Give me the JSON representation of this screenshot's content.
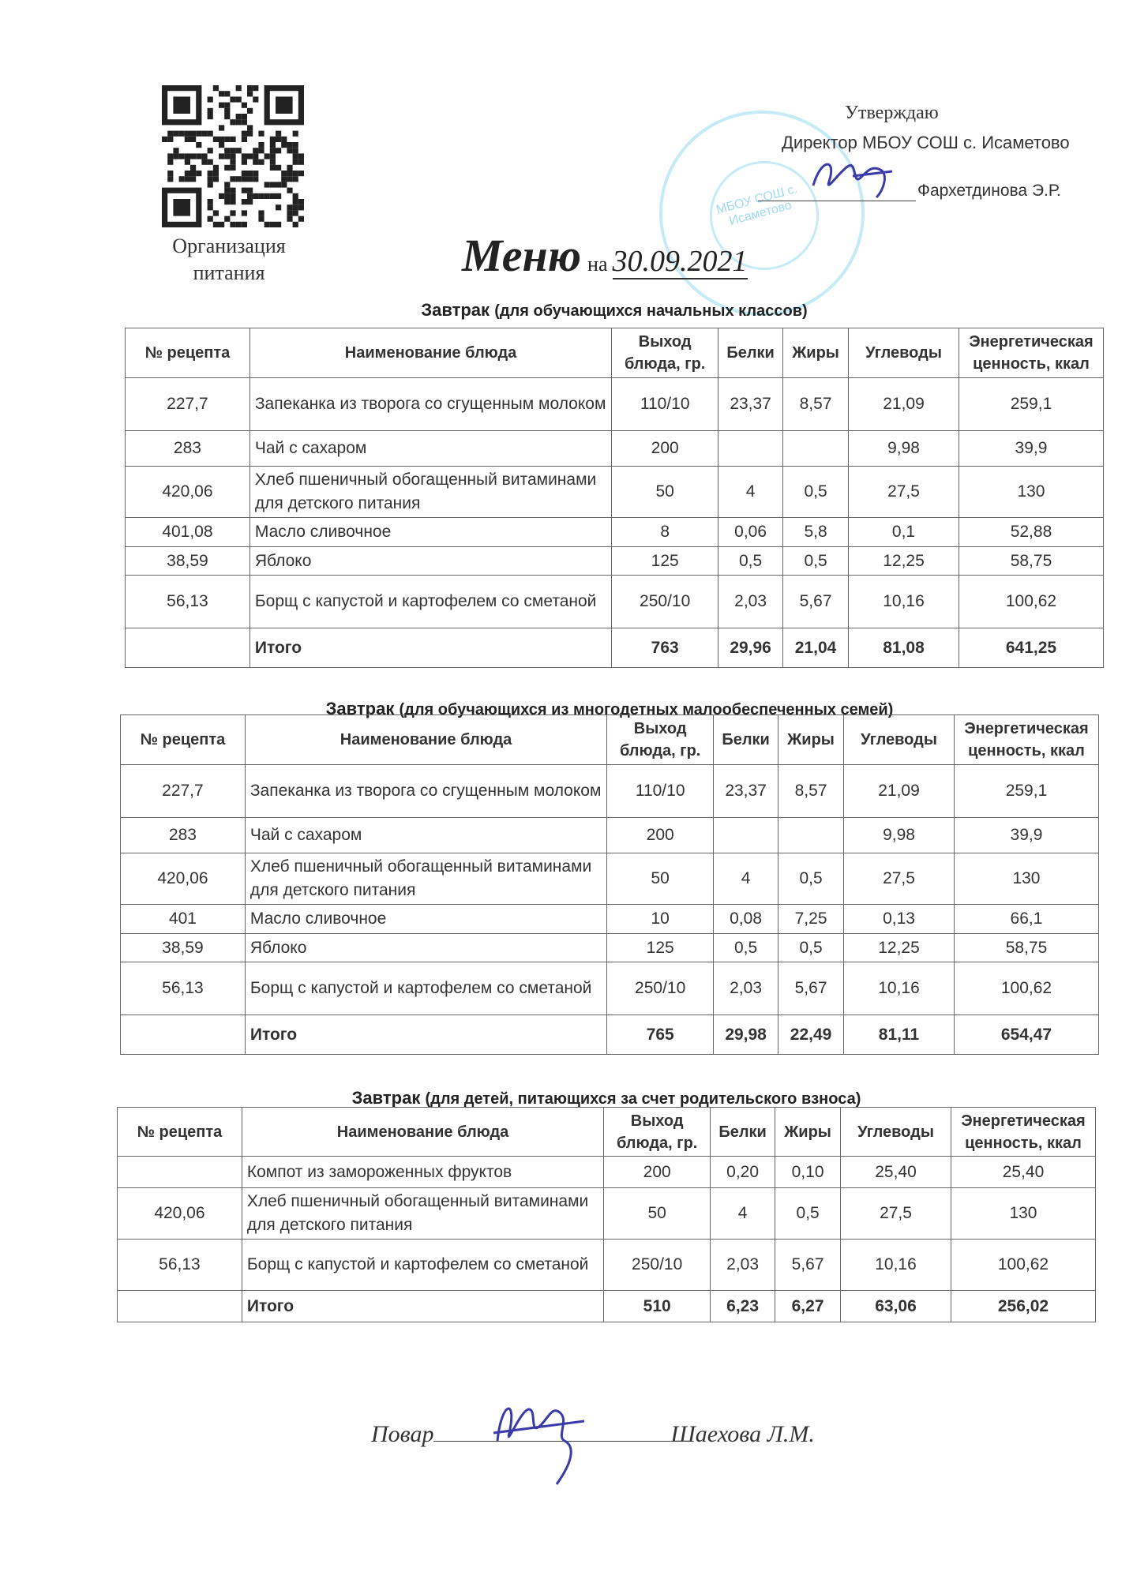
{
  "header": {
    "org_line1": "Организация",
    "org_line2": "питания",
    "approve": "Утверждаю",
    "director": "Директор МБОУ СОШ с. Исаметово",
    "director_name": "Фархетдинова Э.Р.",
    "title": "Меню",
    "title_na": "на",
    "date": "30.09.2021",
    "stamp_text": "МБОУ СОШ с. Исаметово"
  },
  "columns": [
    "№ рецепта",
    "Наименование блюда",
    "Выход блюда, гр.",
    "Белки",
    "Жиры",
    "Углеводы",
    "Энергетическая ценность, ккал"
  ],
  "tables": [
    {
      "caption_bold": "Завтрак",
      "caption_rest": "(для обучающихся начальных классов)",
      "rows": [
        [
          "227,7",
          "Запеканка из творога со сгущенным молоком",
          "110/10",
          "23,37",
          "8,57",
          "21,09",
          "259,1"
        ],
        [
          "283",
          "Чай с сахаром",
          "200",
          "",
          "",
          "9,98",
          "39,9"
        ],
        [
          "420,06",
          "Хлеб пшеничный обогащенный витаминами для детского питания",
          "50",
          "4",
          "0,5",
          "27,5",
          "130"
        ],
        [
          "401,08",
          "Масло сливочное",
          "8",
          "0,06",
          "5,8",
          "0,1",
          "52,88"
        ],
        [
          "38,59",
          "Яблоко",
          "125",
          "0,5",
          "0,5",
          "12,25",
          "58,75"
        ],
        [
          "56,13",
          "Борщ с капустой и картофелем со сметаной",
          "250/10",
          "2,03",
          "5,67",
          "10,16",
          "100,62"
        ]
      ],
      "total": [
        "",
        "Итого",
        "763",
        "29,96",
        "21,04",
        "81,08",
        "641,25"
      ]
    },
    {
      "caption_bold": "Завтрак",
      "caption_rest": "(для обучающихся из многодетных малообеспеченных семей)",
      "rows": [
        [
          "227,7",
          "Запеканка из творога со сгущенным молоком",
          "110/10",
          "23,37",
          "8,57",
          "21,09",
          "259,1"
        ],
        [
          "283",
          "Чай с сахаром",
          "200",
          "",
          "",
          "9,98",
          "39,9"
        ],
        [
          "420,06",
          "Хлеб пшеничный обогащенный витаминами для детского питания",
          "50",
          "4",
          "0,5",
          "27,5",
          "130"
        ],
        [
          "401",
          "Масло сливочное",
          "10",
          "0,08",
          "7,25",
          "0,13",
          "66,1"
        ],
        [
          "38,59",
          "Яблоко",
          "125",
          "0,5",
          "0,5",
          "12,25",
          "58,75"
        ],
        [
          "56,13",
          "Борщ с капустой и картофелем со сметаной",
          "250/10",
          "2,03",
          "5,67",
          "10,16",
          "100,62"
        ]
      ],
      "total": [
        "",
        "Итого",
        "765",
        "29,98",
        "22,49",
        "81,11",
        "654,47"
      ]
    },
    {
      "caption_bold": "Завтрак",
      "caption_rest": "(для детей, питающихся за счет родительского взноса)",
      "rows": [
        [
          "",
          "Компот из замороженных фруктов",
          "200",
          "0,20",
          "0,10",
          "25,40",
          "25,40"
        ],
        [
          "420,06",
          "Хлеб пшеничный обогащенный витаминами для детского питания",
          "50",
          "4",
          "0,5",
          "27,5",
          "130"
        ],
        [
          "56,13",
          "Борщ с капустой и картофелем со сметаной",
          "250/10",
          "2,03",
          "5,67",
          "10,16",
          "100,62"
        ]
      ],
      "total": [
        "",
        "Итого",
        "510",
        "6,23",
        "6,27",
        "63,06",
        "256,02"
      ]
    }
  ],
  "footer": {
    "cook_label": "Повар",
    "cook_name": "Шаехова Л.М."
  },
  "colors": {
    "stamp": "#5ac8e6",
    "signature": "#3a3aa8",
    "text": "#222222"
  }
}
